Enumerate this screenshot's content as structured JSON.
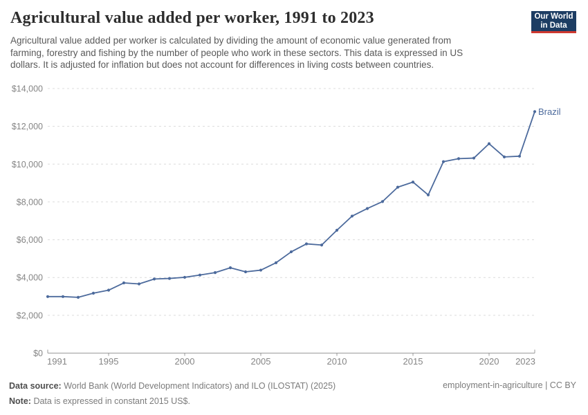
{
  "header": {
    "title": "Agricultural value added per worker, 1991 to 2023",
    "subtitle_lines": [
      "Agricultural value added per worker is calculated by dividing the amount of economic value generated from",
      "farming, forestry and fishing by the number of people who work in these sectors. This data is expressed in US",
      "dollars. It is adjusted for inflation but does not account for differences in living costs between countries."
    ]
  },
  "logo": {
    "line1": "Our World",
    "line2": "in Data",
    "bg_color": "#1d3d63",
    "bar_color": "#cf3830"
  },
  "chart_data": {
    "type": "line",
    "title": "Agricultural value added per worker, 1991 to 2023",
    "x": [
      1991,
      1992,
      1993,
      1994,
      1995,
      1996,
      1997,
      1998,
      1999,
      2000,
      2001,
      2002,
      2003,
      2004,
      2005,
      2006,
      2007,
      2008,
      2009,
      2010,
      2011,
      2012,
      2013,
      2014,
      2015,
      2016,
      2017,
      2018,
      2019,
      2020,
      2021,
      2022,
      2023
    ],
    "series": [
      {
        "name": "Brazil",
        "color": "#4c6a9c",
        "values": [
          2990,
          2990,
          2950,
          3170,
          3330,
          3715,
          3660,
          3920,
          3950,
          4010,
          4130,
          4260,
          4515,
          4300,
          4390,
          4780,
          5360,
          5780,
          5720,
          6500,
          7250,
          7650,
          8020,
          8780,
          9050,
          8370,
          10130,
          10290,
          10320,
          11080,
          10380,
          10420,
          12780
        ]
      }
    ],
    "ylim": [
      0,
      14000
    ],
    "ytick_values": [
      0,
      2000,
      4000,
      6000,
      8000,
      10000,
      12000,
      14000
    ],
    "ytick_labels": [
      "$0",
      "$2,000",
      "$4,000",
      "$6,000",
      "$8,000",
      "$10,000",
      "$12,000",
      "$14,000"
    ],
    "xticks": [
      1991,
      1995,
      2000,
      2005,
      2010,
      2015,
      2020,
      2023
    ],
    "grid": "dashed-horizontal",
    "legend_position": "end-of-line-label",
    "end_label": "Brazil",
    "axis_color": "#999999",
    "grid_color": "#dcdcdc",
    "tick_label_color": "#858585"
  },
  "footer": {
    "source_label": "Data source:",
    "source_text": "World Bank (World Development Indicators) and ILO (ILOSTAT) (2025)",
    "note_label": "Note:",
    "note_text": "Data is expressed in constant 2015 US$.",
    "attribution": "employment-in-agriculture | CC BY"
  }
}
